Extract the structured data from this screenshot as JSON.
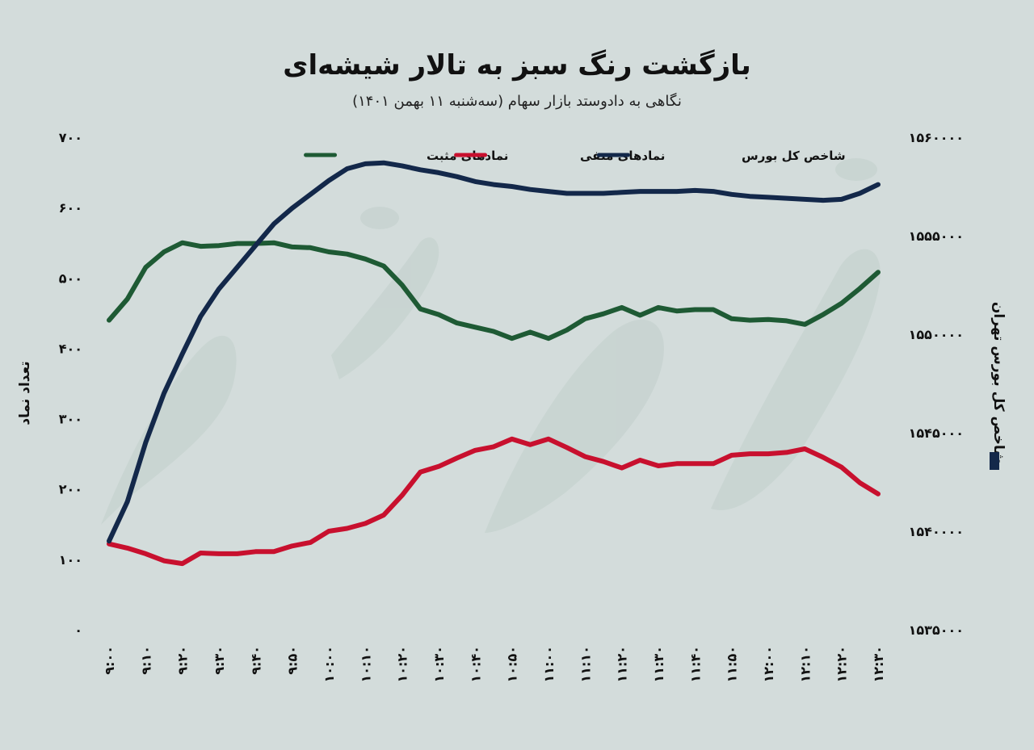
{
  "chart_data": {
    "type": "line",
    "title": "بازگشت رنگ سبز به تالار شیشه‌ای",
    "subtitle": "نگاهی به دادوستد بازار سهام (سه‌شنبه ۱۱ بهمن ۱۴۰۱)",
    "ylabel_left": "تعداد نماد",
    "ylabel_right": "شاخص کل بورس تهران",
    "ylim_left": [
      0,
      700
    ],
    "ylim_right": [
      1535000,
      1560000
    ],
    "yticks_left": [
      "۰",
      "۱۰۰",
      "۲۰۰",
      "۳۰۰",
      "۴۰۰",
      "۵۰۰",
      "۶۰۰",
      "۷۰۰"
    ],
    "yticks_right": [
      "۱۵۳۵۰۰۰",
      "۱۵۴۰۰۰۰",
      "۱۵۴۵۰۰۰",
      "۱۵۵۰۰۰۰",
      "۱۵۵۵۰۰۰",
      "۱۵۶۰۰۰۰"
    ],
    "xtick_labels": [
      "۹:۰۰",
      "۹:۱۰",
      "۹:۲۰",
      "۹:۳۰",
      "۹:۴۰",
      "۹:۵۰",
      "۱۰:۰۰",
      "۱۰:۱۰",
      "۱۰:۲۰",
      "۱۰:۳۰",
      "۱۰:۴۰",
      "۱۰:۵۰",
      "۱۱:۰۰",
      "۱۱:۱۰",
      "۱۱:۲۰",
      "۱۱:۳۰",
      "۱۱:۴۰",
      "۱۱:۵۰",
      "۱۲:۰۰",
      "۱۲:۱۰",
      "۱۲:۲۰",
      "۱۲:۳۰"
    ],
    "x": [
      "9:00",
      "9:05",
      "9:10",
      "9:15",
      "9:20",
      "9:25",
      "9:30",
      "9:35",
      "9:40",
      "9:45",
      "9:50",
      "9:55",
      "10:00",
      "10:05",
      "10:10",
      "10:15",
      "10:20",
      "10:25",
      "10:30",
      "10:35",
      "10:40",
      "10:45",
      "10:50",
      "10:55",
      "11:00",
      "11:05",
      "11:10",
      "11:15",
      "11:20",
      "11:25",
      "11:30",
      "11:35",
      "11:40",
      "11:45",
      "11:50",
      "11:55",
      "12:00",
      "12:05",
      "12:10",
      "12:15",
      "12:20",
      "12:25",
      "12:30"
    ],
    "legend_position": "top",
    "grid": false,
    "series": [
      {
        "name": "نمادهای مثبت",
        "axis": "left",
        "color": "#1e5a34",
        "values": [
          440,
          470,
          515,
          537,
          550,
          545,
          546,
          549,
          549,
          550,
          544,
          543,
          537,
          534,
          527,
          517,
          490,
          456,
          448,
          436,
          430,
          424,
          414,
          423,
          414,
          426,
          442,
          449,
          458,
          447,
          458,
          453,
          455,
          455,
          442,
          440,
          441,
          439,
          434,
          448,
          464,
          485,
          508
        ]
      },
      {
        "name": "نمادهای منفی",
        "axis": "left",
        "color": "#c8102e",
        "values": [
          122,
          116,
          108,
          98,
          94,
          109,
          108,
          108,
          111,
          111,
          119,
          124,
          140,
          144,
          151,
          163,
          191,
          224,
          232,
          244,
          255,
          260,
          271,
          263,
          271,
          259,
          246,
          239,
          230,
          241,
          233,
          236,
          236,
          236,
          248,
          250,
          250,
          252,
          257,
          245,
          231,
          209,
          193
        ]
      },
      {
        "name": "شاخص کل بورس",
        "axis": "right",
        "color": "#13284a",
        "values": [
          1539500,
          1541500,
          1544500,
          1547000,
          1549000,
          1550900,
          1552300,
          1553400,
          1554500,
          1555600,
          1556400,
          1557100,
          1557800,
          1558400,
          1558650,
          1558700,
          1558550,
          1558350,
          1558200,
          1558000,
          1557750,
          1557600,
          1557500,
          1557350,
          1557250,
          1557150,
          1557150,
          1557150,
          1557200,
          1557250,
          1557250,
          1557250,
          1557300,
          1557250,
          1557100,
          1557000,
          1556950,
          1556900,
          1556850,
          1556800,
          1556850,
          1557150,
          1557600
        ]
      }
    ]
  }
}
